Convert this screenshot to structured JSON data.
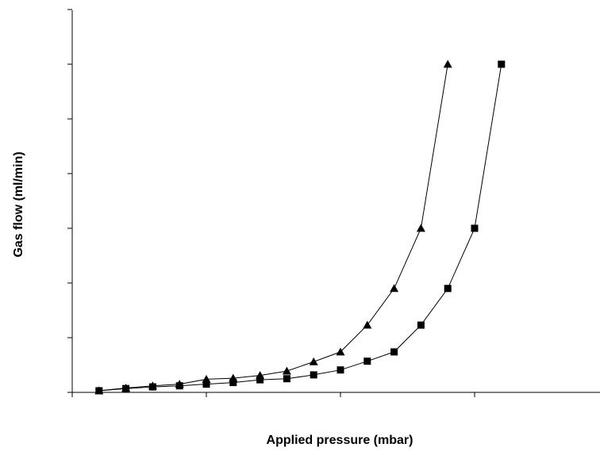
{
  "chart_data": {
    "type": "scatter",
    "title": "",
    "xlabel": "Applied pressure (mbar)",
    "ylabel": "Gas flow (ml/min)",
    "x_tick_labels": [],
    "y_tick_labels": [],
    "xlim": [
      0,
      190
    ],
    "ylim": [
      0,
      70
    ],
    "x_ticks": [
      0,
      50,
      100,
      150,
      200
    ],
    "y_ticks": [
      0,
      10,
      20,
      30,
      40,
      50,
      60,
      70
    ],
    "grid": false,
    "legend": "none",
    "series": [
      {
        "marker": "triangle",
        "color": "#000000",
        "x": [
          10,
          20,
          30,
          40,
          50,
          60,
          70,
          80,
          90,
          100,
          110,
          120,
          130,
          140
        ],
        "y": [
          0.3,
          0.8,
          1.2,
          1.5,
          2.4,
          2.6,
          3.1,
          3.9,
          5.6,
          7.4,
          12.3,
          19.0,
          30.0,
          60.0
        ]
      },
      {
        "marker": "square",
        "color": "#000000",
        "x": [
          10,
          20,
          30,
          40,
          50,
          60,
          70,
          80,
          90,
          100,
          110,
          120,
          130,
          140,
          150,
          160
        ],
        "y": [
          0.3,
          0.7,
          1.0,
          1.2,
          1.5,
          1.8,
          2.3,
          2.5,
          3.2,
          4.1,
          5.7,
          7.4,
          12.3,
          19.0,
          30.0,
          60.0
        ]
      }
    ]
  }
}
